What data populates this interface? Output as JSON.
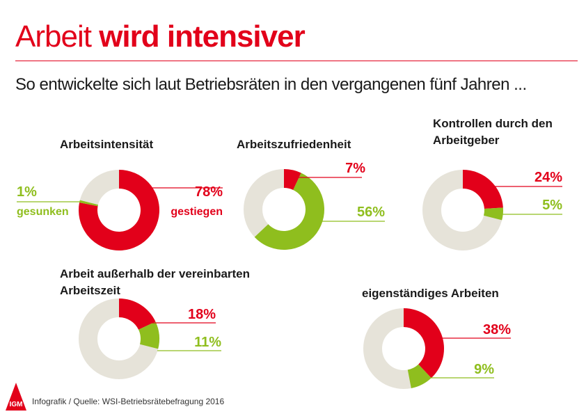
{
  "header": {
    "title_regular": "Arbeit",
    "title_bold": "wird intensiver",
    "subtitle": "So entwickelte sich laut Betriebsräten in den vergangenen fünf Jahren ..."
  },
  "colors": {
    "red": "#e2001a",
    "green": "#8fbe1e",
    "grey": "#e6e3d9",
    "accent": "#e2001a"
  },
  "chart_data": [
    {
      "type": "pie",
      "title": "Arbeitsintensität",
      "slices": [
        {
          "name": "gestiegen",
          "value": 78
        },
        {
          "name": "gesunken",
          "value": 1
        }
      ],
      "labels": [
        "78%",
        "gestiegen",
        "1%",
        "gesunken"
      ]
    },
    {
      "type": "pie",
      "title": "Arbeitszufriedenheit",
      "slices": [
        {
          "value": 7
        },
        {
          "value": 56
        }
      ],
      "labels": [
        "7%",
        "56%"
      ]
    },
    {
      "type": "pie",
      "title_lines": [
        "Kontrollen durch den",
        "Arbeitgeber"
      ],
      "slices": [
        {
          "value": 24
        },
        {
          "value": 5
        }
      ],
      "labels": [
        "24%",
        "5%"
      ]
    },
    {
      "type": "pie",
      "title_lines": [
        "Arbeit außerhalb der vereinbarten",
        "Arbeitszeit"
      ],
      "slices": [
        {
          "value": 18
        },
        {
          "value": 11
        }
      ],
      "labels": [
        "18%",
        "11%"
      ]
    },
    {
      "type": "pie",
      "title": "eigenständiges Arbeiten",
      "slices": [
        {
          "value": 38
        },
        {
          "value": 9
        }
      ],
      "labels": [
        "38%",
        "9%"
      ]
    }
  ],
  "footer": {
    "source": "Infografik / Quelle: WSI-Betriebsrätebefragung 2016",
    "logo_text": "IGM"
  }
}
